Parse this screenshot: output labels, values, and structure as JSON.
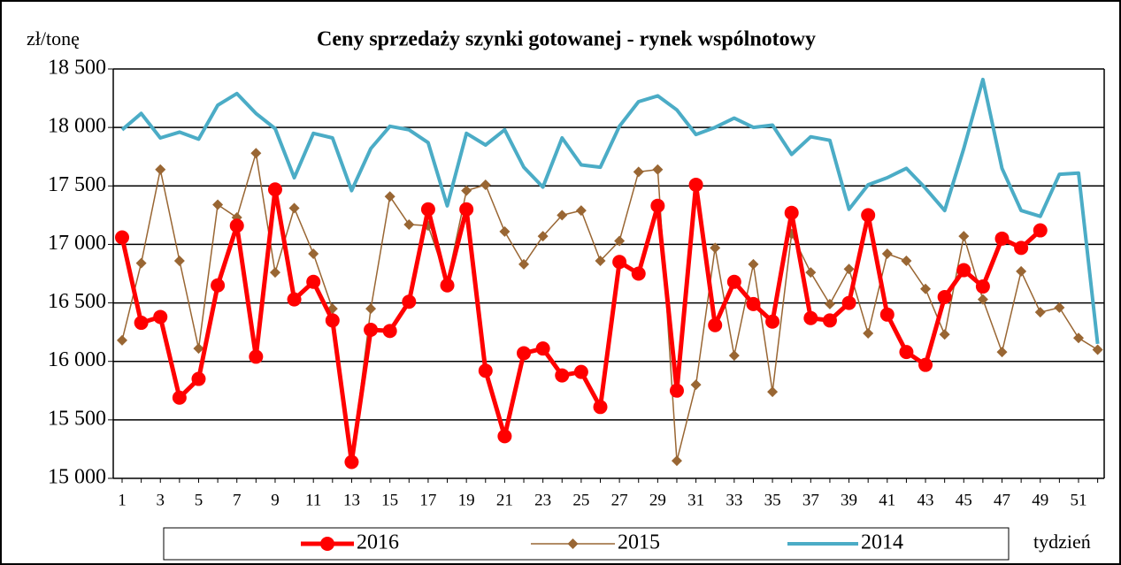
{
  "chart_data": {
    "type": "line",
    "title": "Ceny sprzedaży szynki gotowanej - rynek wspólnotowy",
    "y_label": "zł/tonę",
    "x_label": "tydzień",
    "categories": [
      1,
      null,
      3,
      null,
      5,
      null,
      7,
      null,
      9,
      null,
      11,
      null,
      13,
      null,
      15,
      null,
      17,
      null,
      19,
      null,
      21,
      null,
      23,
      null,
      25,
      null,
      27,
      null,
      29,
      null,
      31,
      null,
      33,
      null,
      35,
      null,
      37,
      null,
      39,
      null,
      41,
      null,
      43,
      null,
      45,
      null,
      47,
      null,
      49,
      null,
      51,
      null
    ],
    "series": [
      {
        "name": "2016",
        "color": "#ff0000",
        "marker": "circle",
        "values": [
          17060,
          16330,
          16380,
          15690,
          15850,
          16650,
          17160,
          16040,
          17470,
          16530,
          16680,
          16350,
          15140,
          16270,
          16260,
          16510,
          17300,
          16650,
          17300,
          15920,
          15360,
          16070,
          16110,
          15880,
          15910,
          15610,
          16850,
          16750,
          17330,
          15750,
          17510,
          16310,
          16680,
          16490,
          16340,
          17270,
          16370,
          16350,
          16500,
          17250,
          16400,
          16080,
          15970,
          16550,
          16780,
          16640,
          17050,
          16970,
          17120,
          null,
          null,
          null
        ]
      },
      {
        "name": "2015",
        "color": "#996633",
        "marker": "diamond",
        "values": [
          16180,
          16840,
          17640,
          16860,
          16110,
          17340,
          17230,
          17780,
          16760,
          17310,
          16920,
          16450,
          15150,
          16450,
          17410,
          17170,
          17160,
          16680,
          17460,
          17510,
          17110,
          16830,
          17070,
          17250,
          17290,
          16860,
          17030,
          17620,
          17640,
          15150,
          15800,
          16970,
          16050,
          16830,
          15740,
          17090,
          16760,
          16490,
          16790,
          16240,
          16920,
          16860,
          16620,
          16230,
          17070,
          16530,
          16080,
          16770,
          16420,
          16460,
          16200,
          16100
        ]
      },
      {
        "name": "2014",
        "color": "#4bacc6",
        "marker": "none",
        "values": [
          17980,
          18120,
          17910,
          17960,
          17900,
          18190,
          18290,
          18120,
          17990,
          17570,
          17950,
          17910,
          17460,
          17820,
          18010,
          17980,
          17870,
          17330,
          17950,
          17850,
          17980,
          17660,
          17490,
          17910,
          17680,
          17660,
          18010,
          18220,
          18270,
          18150,
          17940,
          18000,
          18080,
          18000,
          18020,
          17770,
          17920,
          17890,
          17300,
          17510,
          17570,
          17650,
          17480,
          17290,
          17820,
          18410,
          17650,
          17290,
          17240,
          17600,
          17610,
          16150
        ]
      }
    ],
    "ylim": [
      15000,
      18500
    ],
    "yticks": [
      {
        "value": 15000,
        "label": "15 000"
      },
      {
        "value": 15500,
        "label": "15 500"
      },
      {
        "value": 16000,
        "label": "16 000"
      },
      {
        "value": 16500,
        "label": "16 500"
      },
      {
        "value": 17000,
        "label": "17 000"
      },
      {
        "value": 17500,
        "label": "17 500"
      },
      {
        "value": 18000,
        "label": "18 000"
      },
      {
        "value": 18500,
        "label": "18 500"
      }
    ],
    "grid": true
  }
}
